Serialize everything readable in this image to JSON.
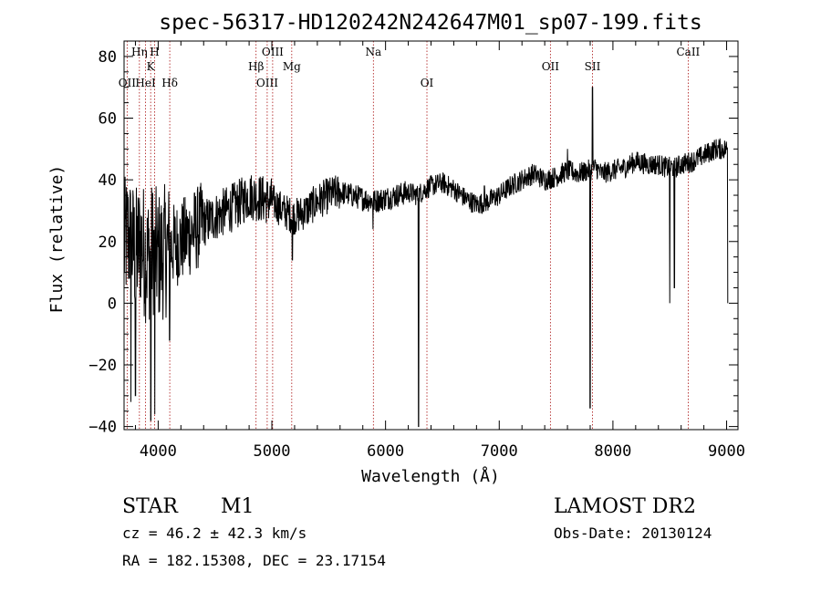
{
  "chart_data": {
    "type": "line",
    "title": "spec-56317-HD120242N242647M01_sp07-199.fits",
    "xlabel": "Wavelength (Å)",
    "ylabel": "Flux (relative)",
    "xlim": [
      3700,
      9100
    ],
    "ylim": [
      -41,
      85
    ],
    "x_ticks": [
      "4000",
      "5000",
      "6000",
      "7000",
      "8000",
      "9000"
    ],
    "y_ticks": [
      "−40",
      "−20",
      "0",
      "20",
      "40",
      "60",
      "80"
    ],
    "x_tick_values": [
      4000,
      5000,
      6000,
      7000,
      8000,
      9000
    ],
    "y_tick_values": [
      -40,
      -20,
      0,
      20,
      40,
      60,
      80
    ],
    "grid": false,
    "line_color": "#000000",
    "marker_color": "#aa1111",
    "lines": [
      {
        "label": "OII",
        "wavelength": 3727,
        "row": 2
      },
      {
        "label": "Hη",
        "wavelength": 3835,
        "row": 0
      },
      {
        "label": "HeI",
        "wavelength": 3889,
        "row": 2
      },
      {
        "label": "K",
        "wavelength": 3934,
        "row": 1
      },
      {
        "label": "H",
        "wavelength": 3969,
        "row": 0
      },
      {
        "label": "Hδ",
        "wavelength": 4102,
        "row": 2
      },
      {
        "label": "Hβ",
        "wavelength": 4861,
        "row": 1
      },
      {
        "label": "OIII",
        "wavelength": 4959,
        "row": 2
      },
      {
        "label": "OIII",
        "wavelength": 5007,
        "row": 0
      },
      {
        "label": "Mg",
        "wavelength": 5175,
        "row": 1
      },
      {
        "label": "Na",
        "wavelength": 5893,
        "row": 0
      },
      {
        "label": "OI",
        "wavelength": 6364,
        "row": 2
      },
      {
        "label": "OII",
        "wavelength": 7450,
        "row": 1
      },
      {
        "label": "SII",
        "wavelength": 7820,
        "row": 1
      },
      {
        "label": "CaII",
        "wavelength": 8662,
        "row": 0
      }
    ],
    "series": [
      {
        "x": [
          3700,
          3730,
          3760,
          3800,
          3850,
          3900,
          3950,
          4000,
          4100,
          4200,
          4300,
          4400,
          4500,
          4600,
          4700,
          4800,
          4900,
          5000,
          5100,
          5200,
          5300,
          5400,
          5500,
          5600,
          5700,
          5800,
          5900,
          6000,
          6100,
          6200,
          6280,
          6350,
          6400,
          6500,
          6600,
          6700,
          6800,
          6900,
          7000,
          7100,
          7200,
          7300,
          7400,
          7500,
          7600,
          7700,
          7780,
          7850,
          7900,
          8000,
          8100,
          8200,
          8300,
          8400,
          8470,
          8550,
          8600,
          8700,
          8800,
          8900,
          9000
        ],
        "y": [
          18,
          22,
          20,
          16,
          20,
          14,
          18,
          15,
          18,
          20,
          23,
          26,
          28,
          30,
          32,
          35,
          34,
          33,
          30,
          28,
          30,
          33,
          35,
          36,
          35,
          34,
          33,
          34,
          35,
          36,
          35,
          37,
          38,
          39,
          37,
          34,
          32,
          33,
          35,
          38,
          40,
          42,
          40,
          41,
          43,
          42,
          43,
          44,
          42,
          43,
          44,
          46,
          45,
          45,
          44,
          44,
          45,
          46,
          48,
          50,
          50
        ],
        "features": [
          {
            "x": 3760,
            "y": -32
          },
          {
            "x": 3800,
            "y": -30
          },
          {
            "x": 3935,
            "y": -38
          },
          {
            "x": 3970,
            "y": -36
          },
          {
            "x": 4100,
            "y": -12
          },
          {
            "x": 5180,
            "y": 14
          },
          {
            "x": 5890,
            "y": 24
          },
          {
            "x": 6290,
            "y": -40
          },
          {
            "x": 6870,
            "y": 38
          },
          {
            "x": 7600,
            "y": 50
          },
          {
            "x": 7800,
            "y": -34
          },
          {
            "x": 7820,
            "y": 70
          },
          {
            "x": 8500,
            "y": 0
          },
          {
            "x": 8540,
            "y": 5
          },
          {
            "x": 9010,
            "y": 0
          }
        ]
      }
    ]
  },
  "info": {
    "object_class": "STAR",
    "subclass": "M1",
    "survey": "LAMOST DR2",
    "cz": "cz = 46.2 ± 42.3 km/s",
    "obs_date": "Obs-Date: 20130124",
    "coords": "RA = 182.15308, DEC =  23.17154"
  }
}
